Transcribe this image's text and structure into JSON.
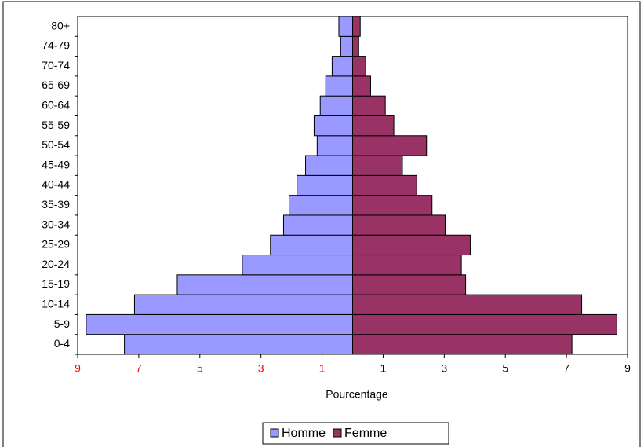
{
  "chart_data": {
    "type": "pyramid",
    "xlabel": "Pourcentage",
    "categories": [
      "0-4",
      "5-9",
      "10-14",
      "15-19",
      "20-24",
      "25-29",
      "30-34",
      "35-39",
      "40-44",
      "45-49",
      "50-54",
      "55-59",
      "60-64",
      "65-69",
      "70-74",
      "74-79",
      "80+"
    ],
    "series": [
      {
        "name": "Homme",
        "color": "#9999ff",
        "values": [
          -7.47,
          -8.72,
          -7.14,
          -5.74,
          -3.61,
          -2.69,
          -2.26,
          -2.08,
          -1.82,
          -1.54,
          -1.16,
          -1.26,
          -1.06,
          -0.88,
          -0.67,
          -0.39,
          -0.45
        ]
      },
      {
        "name": "Femme",
        "color": "#993366",
        "values": [
          7.18,
          8.65,
          7.5,
          3.7,
          3.56,
          3.85,
          3.03,
          2.6,
          2.1,
          1.63,
          2.42,
          1.35,
          1.07,
          0.59,
          0.43,
          0.2,
          0.25
        ]
      }
    ],
    "xlim": [
      -9,
      9
    ],
    "xticks": [
      {
        "value": -9,
        "label": "9"
      },
      {
        "value": -7,
        "label": "7"
      },
      {
        "value": -5,
        "label": "5"
      },
      {
        "value": -3,
        "label": "3"
      },
      {
        "value": -1,
        "label": "1"
      },
      1,
      3,
      5,
      7,
      9
    ],
    "negative_tick_color": "#ff0000",
    "legend": "bottom"
  }
}
